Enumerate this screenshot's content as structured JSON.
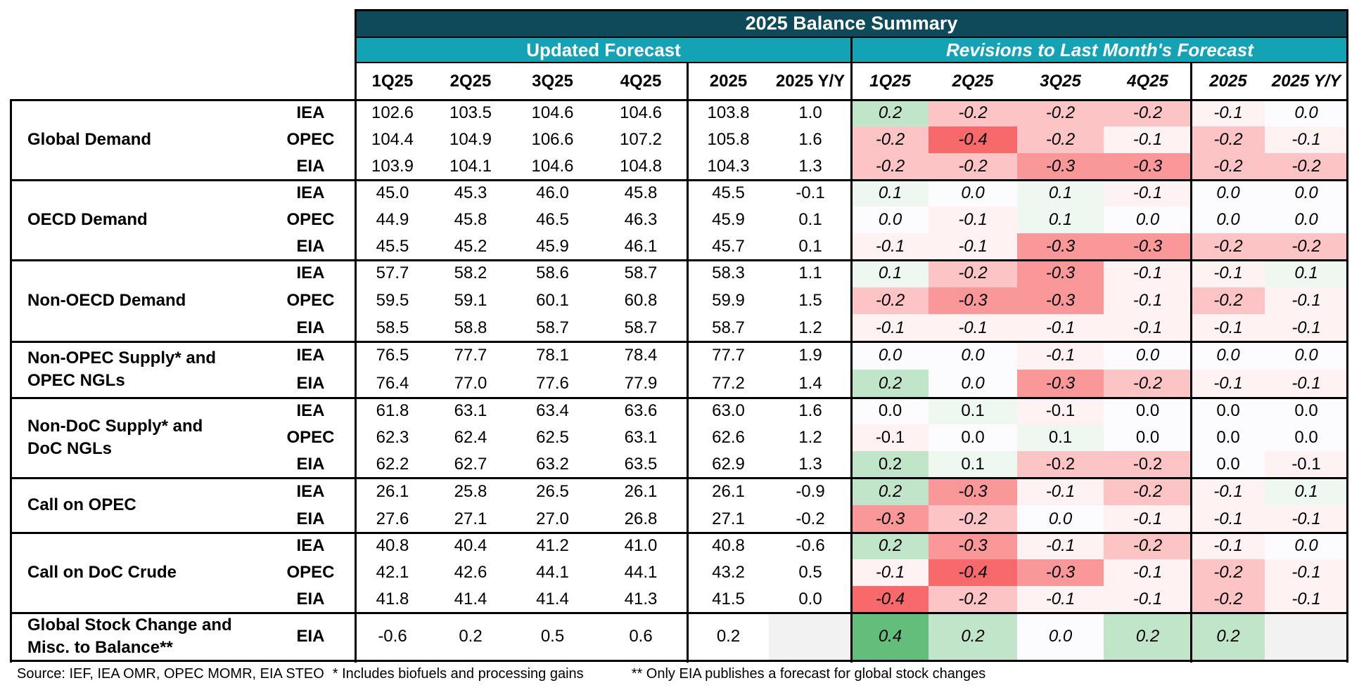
{
  "title": "2025 Balance Summary",
  "sections": {
    "updated": "Updated Forecast",
    "revisions": "Revisions to Last Month's Forecast"
  },
  "columns": [
    "1Q25",
    "2Q25",
    "3Q25",
    "4Q25",
    "2025",
    "2025 Y/Y"
  ],
  "groups": [
    {
      "name": "Global Demand",
      "rows": [
        {
          "source": "IEA",
          "values": [
            "102.6",
            "103.5",
            "104.6",
            "104.6",
            "103.8",
            "1.0"
          ],
          "revisions": [
            "0.2",
            "-0.2",
            "-0.2",
            "-0.2",
            "-0.1",
            "0.0"
          ]
        },
        {
          "source": "OPEC",
          "values": [
            "104.4",
            "104.9",
            "106.6",
            "107.2",
            "105.8",
            "1.6"
          ],
          "revisions": [
            "-0.2",
            "-0.4",
            "-0.2",
            "-0.1",
            "-0.2",
            "-0.1"
          ]
        },
        {
          "source": "EIA",
          "values": [
            "103.9",
            "104.1",
            "104.6",
            "104.8",
            "104.3",
            "1.3"
          ],
          "revisions": [
            "-0.2",
            "-0.2",
            "-0.3",
            "-0.3",
            "-0.2",
            "-0.2"
          ]
        }
      ]
    },
    {
      "name": "OECD Demand",
      "rows": [
        {
          "source": "IEA",
          "values": [
            "45.0",
            "45.3",
            "46.0",
            "45.8",
            "45.5",
            "-0.1"
          ],
          "revisions": [
            "0.1",
            "0.0",
            "0.1",
            "-0.1",
            "0.0",
            "0.0"
          ]
        },
        {
          "source": "OPEC",
          "values": [
            "44.9",
            "45.8",
            "46.5",
            "46.3",
            "45.9",
            "0.1"
          ],
          "revisions": [
            "0.0",
            "-0.1",
            "0.1",
            "0.0",
            "0.0",
            "0.0"
          ]
        },
        {
          "source": "EIA",
          "values": [
            "45.5",
            "45.2",
            "45.9",
            "46.1",
            "45.7",
            "0.1"
          ],
          "revisions": [
            "-0.1",
            "-0.1",
            "-0.3",
            "-0.3",
            "-0.2",
            "-0.2"
          ]
        }
      ]
    },
    {
      "name": "Non-OECD Demand",
      "rows": [
        {
          "source": "IEA",
          "values": [
            "57.7",
            "58.2",
            "58.6",
            "58.7",
            "58.3",
            "1.1"
          ],
          "revisions": [
            "0.1",
            "-0.2",
            "-0.3",
            "-0.1",
            "-0.1",
            "0.1"
          ]
        },
        {
          "source": "OPEC",
          "values": [
            "59.5",
            "59.1",
            "60.1",
            "60.8",
            "59.9",
            "1.5"
          ],
          "revisions": [
            "-0.2",
            "-0.3",
            "-0.3",
            "-0.1",
            "-0.2",
            "-0.1"
          ]
        },
        {
          "source": "EIA",
          "values": [
            "58.5",
            "58.8",
            "58.7",
            "58.7",
            "58.7",
            "1.2"
          ],
          "revisions": [
            "-0.1",
            "-0.1",
            "-0.1",
            "-0.1",
            "-0.1",
            "-0.1"
          ]
        }
      ]
    },
    {
      "name": "Non-OPEC Supply* and\nOPEC NGLs",
      "rows": [
        {
          "source": "IEA",
          "values": [
            "76.5",
            "77.7",
            "78.1",
            "78.4",
            "77.7",
            "1.9"
          ],
          "revisions": [
            "0.0",
            "0.0",
            "-0.1",
            "0.0",
            "0.0",
            "0.0"
          ]
        },
        {
          "source": "EIA",
          "values": [
            "76.4",
            "77.0",
            "77.6",
            "77.9",
            "77.2",
            "1.4"
          ],
          "revisions": [
            "0.2",
            "0.0",
            "-0.3",
            "-0.2",
            "-0.1",
            "-0.1"
          ]
        }
      ]
    },
    {
      "name": "Non-DoC Supply* and\nDoC NGLs",
      "rows": [
        {
          "source": "IEA",
          "values": [
            "61.8",
            "63.1",
            "63.4",
            "63.6",
            "63.0",
            "1.6"
          ],
          "revisions": [
            "0.0",
            "0.1",
            "-0.1",
            "0.0",
            "0.0",
            "0.0"
          ]
        },
        {
          "source": "OPEC",
          "values": [
            "62.3",
            "62.4",
            "62.5",
            "63.1",
            "62.6",
            "1.2"
          ],
          "revisions": [
            "-0.1",
            "0.0",
            "0.1",
            "0.0",
            "0.0",
            "0.0"
          ]
        },
        {
          "source": "EIA",
          "values": [
            "62.2",
            "62.7",
            "63.2",
            "63.5",
            "62.9",
            "1.3"
          ],
          "revisions": [
            "0.2",
            "0.1",
            "-0.2",
            "-0.2",
            "0.0",
            "-0.1"
          ]
        }
      ]
    },
    {
      "name": "Call on OPEC",
      "rows": [
        {
          "source": "IEA",
          "values": [
            "26.1",
            "25.8",
            "26.5",
            "26.1",
            "26.1",
            "-0.9"
          ],
          "revisions": [
            "0.2",
            "-0.3",
            "-0.1",
            "-0.2",
            "-0.1",
            "0.1"
          ]
        },
        {
          "source": "EIA",
          "values": [
            "27.6",
            "27.1",
            "27.0",
            "26.8",
            "27.1",
            "-0.2"
          ],
          "revisions": [
            "-0.3",
            "-0.2",
            "0.0",
            "-0.1",
            "-0.1",
            "-0.1"
          ]
        }
      ]
    },
    {
      "name": "Call on DoC Crude",
      "rows": [
        {
          "source": "IEA",
          "values": [
            "40.8",
            "40.4",
            "41.2",
            "41.0",
            "40.8",
            "-0.6"
          ],
          "revisions": [
            "0.2",
            "-0.3",
            "-0.1",
            "-0.2",
            "-0.1",
            "0.0"
          ]
        },
        {
          "source": "OPEC",
          "values": [
            "42.1",
            "42.6",
            "44.1",
            "44.1",
            "43.2",
            "0.5"
          ],
          "revisions": [
            "-0.1",
            "-0.4",
            "-0.3",
            "-0.1",
            "-0.2",
            "-0.1"
          ]
        },
        {
          "source": "EIA",
          "values": [
            "41.8",
            "41.4",
            "41.4",
            "41.3",
            "41.5",
            "0.0"
          ],
          "revisions": [
            "-0.4",
            "-0.2",
            "-0.1",
            "-0.1",
            "-0.2",
            "-0.1"
          ]
        }
      ]
    },
    {
      "name": "Global Stock Change and\nMisc. to Balance**",
      "rows": [
        {
          "source": "EIA",
          "values": [
            "-0.6",
            "0.2",
            "0.5",
            "0.6",
            "0.2",
            ""
          ],
          "revisions": [
            "0.4",
            "0.2",
            "0.0",
            "0.2",
            "0.2",
            ""
          ]
        }
      ]
    }
  ],
  "footer": {
    "source": "Source: IEF, IEA OMR, OPEC MOMR, EIA STEO",
    "note1": "* Includes biofuels and processing gains",
    "note2": "** Only EIA publishes a forecast for global stock changes"
  },
  "colors": {
    "banner": "#0e4a5a",
    "subbanner": "#13a3b5",
    "negative_strong": "#f8696b",
    "positive_strong": "#63be7b",
    "neutral": "#fcfcff",
    "empty": "#f2f2f2"
  }
}
